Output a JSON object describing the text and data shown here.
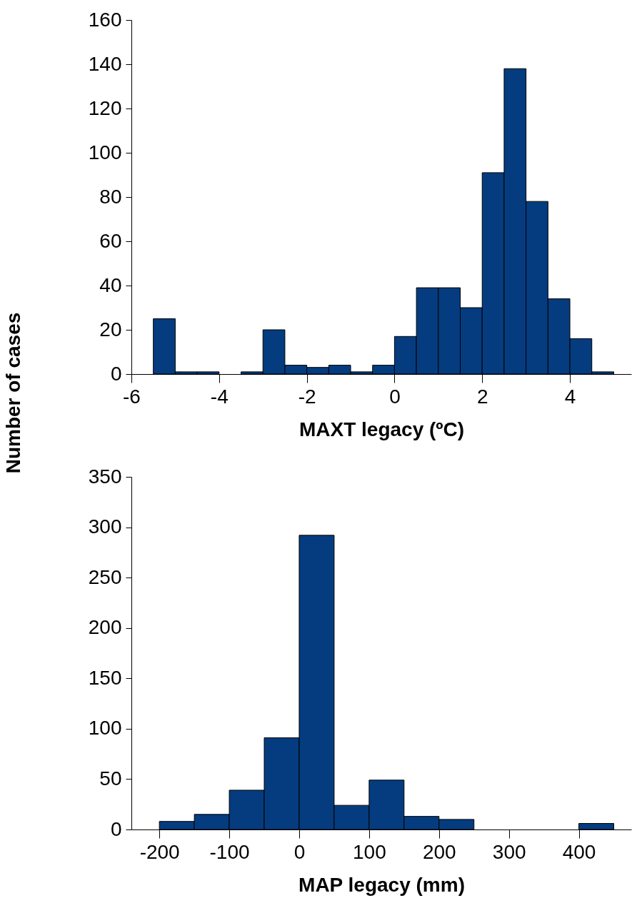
{
  "chart_data": [
    {
      "type": "histogram",
      "xlabel": "MAXT legacy (ºC)",
      "ylabel": "Number of cases",
      "color": "#043c7f",
      "bins": [
        -5.5,
        -5,
        -4.5,
        -4,
        -3.5,
        -3,
        -2.5,
        -2,
        -1.5,
        -1,
        -0.5,
        0,
        0.5,
        1,
        1.5,
        2,
        2.5,
        3,
        3.5,
        4,
        4.5,
        5
      ],
      "values": [
        25,
        1,
        1,
        0,
        1,
        20,
        4,
        3,
        4,
        1,
        4,
        17,
        39,
        39,
        30,
        91,
        138,
        78,
        34,
        16,
        1
      ],
      "xlim": [
        -6,
        5.4
      ],
      "xticks": [
        -6,
        -4,
        -2,
        0,
        2,
        4
      ],
      "ylim": [
        0,
        160
      ],
      "yticks": [
        0,
        20,
        40,
        60,
        80,
        100,
        120,
        140,
        160
      ]
    },
    {
      "type": "histogram",
      "xlabel": "MAP legacy (mm)",
      "color": "#043c7f",
      "bins": [
        -200,
        -150,
        -100,
        -50,
        0,
        50,
        100,
        150,
        200,
        250,
        300,
        350,
        400,
        450
      ],
      "values": [
        8,
        15,
        39,
        91,
        292,
        24,
        49,
        13,
        10,
        0,
        0,
        0,
        6
      ],
      "xlim": [
        -240,
        475
      ],
      "xticks": [
        -200,
        -100,
        0,
        100,
        200,
        300,
        400
      ],
      "ylim": [
        0,
        350
      ],
      "yticks": [
        0,
        50,
        100,
        150,
        200,
        250,
        300,
        350
      ]
    }
  ]
}
